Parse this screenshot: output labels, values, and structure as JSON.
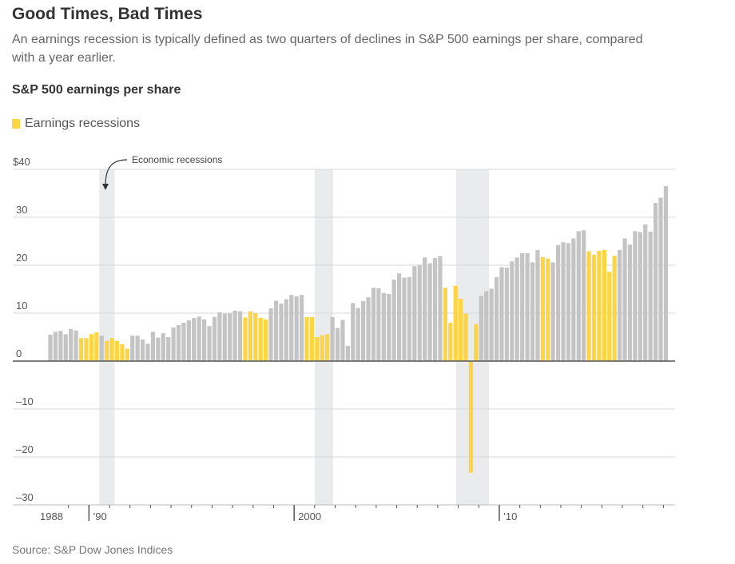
{
  "header": {
    "title": "Good Times, Bad Times",
    "subtitle": "An earnings recession is typically defined as two quarters of declines in S&P 500 earnings per share, compared with a year earlier.",
    "chart_title": "S&P 500 earnings per share",
    "legend_label": "Earnings recessions",
    "annotation": "Economic recessions",
    "source": "Source: S&P Dow Jones Indices"
  },
  "colors": {
    "normal": "#c4c4c4",
    "earnings_recession": "#fdd443",
    "economic_recession_band": "#eaebed",
    "gridline": "#d7d7d7",
    "baseline": "#555555"
  },
  "chart_data": {
    "type": "bar",
    "title": "S&P 500 earnings per share",
    "xlabel": "",
    "ylabel": "",
    "ylim": [
      -30,
      40
    ],
    "yticks": [
      40,
      30,
      20,
      10,
      0,
      -10,
      -20,
      -30
    ],
    "ytick_labels": [
      "$40",
      "30",
      "20",
      "10",
      "0",
      "–10",
      "–20",
      "–30"
    ],
    "x_start": "1988 Q1",
    "frequency": "quarterly",
    "xtick_labels": [
      {
        "year": 1988,
        "label": "1988"
      },
      {
        "year": 1990,
        "label": "’90"
      },
      {
        "year": 2000,
        "label": "2000"
      },
      {
        "year": 2010,
        "label": "’10"
      }
    ],
    "economic_recessions": [
      [
        1990.5,
        1991.25
      ],
      [
        2001.0,
        2001.9
      ],
      [
        2007.9,
        2009.5
      ]
    ],
    "values": [
      5.5,
      6.1,
      6.3,
      5.6,
      6.7,
      6.4,
      4.8,
      4.8,
      5.6,
      6.0,
      5.3,
      4.2,
      4.8,
      4.2,
      3.5,
      2.6,
      5.3,
      5.3,
      4.5,
      3.6,
      6.1,
      4.9,
      5.8,
      5.0,
      7.0,
      7.5,
      8.0,
      8.5,
      9.0,
      9.3,
      8.7,
      7.3,
      9.2,
      10.2,
      9.9,
      10.0,
      10.5,
      10.4,
      9.1,
      10.4,
      10.0,
      9.0,
      8.7,
      11.0,
      12.6,
      12.0,
      12.9,
      13.8,
      13.5,
      13.8,
      9.2,
      9.2,
      5.0,
      5.4,
      5.6,
      9.2,
      6.9,
      8.6,
      3.2,
      12.1,
      11.1,
      12.5,
      13.3,
      15.3,
      15.2,
      14.2,
      14.0,
      17.0,
      18.3,
      17.4,
      17.5,
      19.8,
      20.1,
      21.6,
      20.4,
      21.5,
      21.9,
      15.3,
      8.0,
      15.7,
      13.0,
      9.9,
      -23.3,
      7.7,
      13.6,
      14.6,
      15.1,
      17.5,
      19.6,
      19.5,
      20.8,
      21.6,
      22.5,
      22.5,
      20.6,
      23.2,
      21.7,
      21.4,
      20.6,
      24.2,
      24.8,
      24.6,
      25.6,
      27.1,
      27.3,
      22.9,
      22.2,
      23.0,
      23.2,
      18.6,
      22.0,
      23.2,
      25.6,
      24.3,
      27.1,
      26.9,
      28.5,
      27.0,
      33.0,
      34.1,
      36.5
    ],
    "earnings_recession_flags": [
      0,
      0,
      0,
      0,
      0,
      0,
      1,
      1,
      1,
      1,
      0,
      1,
      1,
      1,
      1,
      1,
      0,
      0,
      0,
      0,
      0,
      0,
      0,
      0,
      0,
      0,
      0,
      0,
      0,
      0,
      0,
      0,
      0,
      0,
      0,
      0,
      0,
      0,
      1,
      1,
      1,
      1,
      1,
      0,
      0,
      0,
      0,
      0,
      0,
      0,
      1,
      1,
      1,
      1,
      1,
      0,
      0,
      0,
      0,
      0,
      0,
      0,
      0,
      0,
      0,
      0,
      0,
      0,
      0,
      0,
      0,
      0,
      0,
      0,
      0,
      0,
      0,
      1,
      1,
      1,
      1,
      1,
      1,
      1,
      0,
      0,
      0,
      0,
      0,
      0,
      0,
      0,
      0,
      0,
      0,
      0,
      1,
      1,
      0,
      0,
      0,
      0,
      0,
      0,
      0,
      1,
      1,
      1,
      1,
      1,
      1,
      0,
      0,
      0,
      0,
      0,
      0,
      0,
      0,
      0,
      0
    ]
  }
}
